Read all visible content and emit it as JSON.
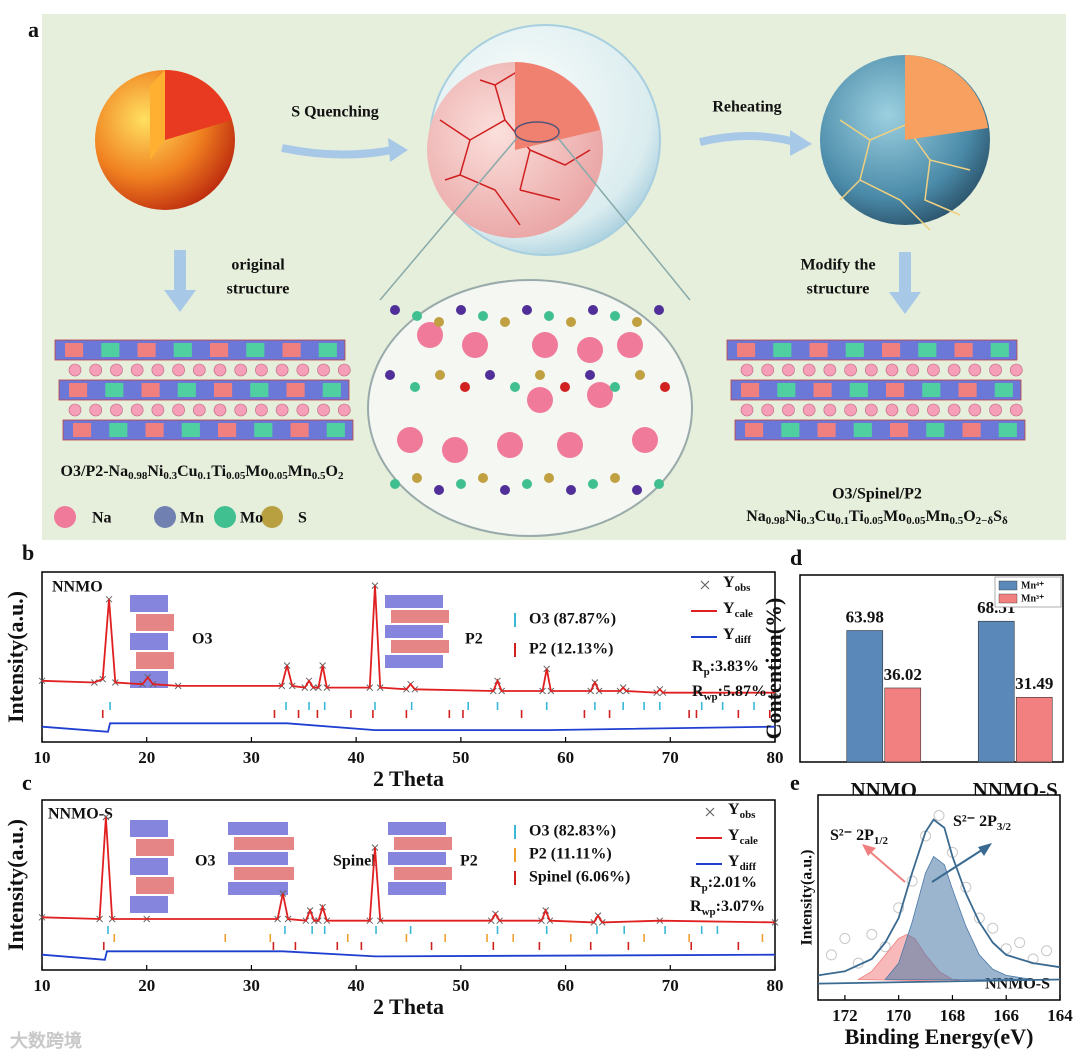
{
  "panel_a": {
    "label": "a",
    "step_1": "S Quenching",
    "step_2": "Reheating",
    "note_left": [
      "original",
      "structure"
    ],
    "note_right": [
      "Modify the",
      "structure"
    ],
    "formula_left": [
      [
        "O3/P2-Na",
        "0.98"
      ],
      [
        "Ni",
        "0.3"
      ],
      [
        "Cu",
        "0.1"
      ],
      [
        "Ti",
        "0.05"
      ],
      [
        "Mo",
        "0.05"
      ],
      [
        "Mn",
        "0.5"
      ],
      [
        "O",
        "2"
      ]
    ],
    "phase_right": "O3/Spinel/P2",
    "formula_right": [
      [
        "Na",
        "0.98"
      ],
      [
        "Ni",
        "0.3"
      ],
      [
        "Cu",
        "0.1"
      ],
      [
        "Ti",
        "0.05"
      ],
      [
        "Mo",
        "0.05"
      ],
      [
        "Mn",
        "0.5"
      ],
      [
        "O",
        "2−δ"
      ],
      [
        "S",
        "δ"
      ]
    ],
    "legend": [
      "Na",
      "Mn",
      "Mo",
      "S"
    ]
  },
  "watermark": "大数跨境",
  "chart_data": [
    {
      "type": "line",
      "panel": "b",
      "sample": "NNMO",
      "xlabel": "2 Theta",
      "ylabel": "Intensity(a.u.)",
      "xlim": [
        10,
        80
      ],
      "xticks": [
        10,
        20,
        30,
        40,
        50,
        60,
        70,
        80
      ],
      "ylim": [
        0,
        100
      ],
      "structure_labels": [
        "O3",
        "P2"
      ],
      "series": [
        {
          "name": "Y",
          "name_sub": "obs",
          "color": "#666666",
          "marker": "x",
          "x": [
            10,
            15,
            15.8,
            16.4,
            17.0,
            19.6,
            20.1,
            20.6,
            23,
            32.9,
            33.4,
            33.9,
            35.1,
            35.5,
            35.9,
            36.4,
            36.8,
            37.2,
            41.3,
            41.8,
            42.3,
            44.8,
            45.2,
            45.6,
            53.1,
            53.5,
            53.9,
            57.8,
            58.2,
            58.6,
            62.4,
            62.8,
            63.2,
            65.2,
            65.5,
            65.8,
            68.7,
            69,
            69.3,
            80
          ],
          "values": [
            36,
            35,
            37,
            84,
            35,
            34,
            38,
            34,
            33,
            33,
            45,
            33,
            32,
            36,
            32,
            32,
            45,
            32,
            32,
            92,
            32,
            31,
            34,
            31,
            30,
            36,
            30,
            30,
            43,
            30,
            30,
            35,
            30,
            30,
            32,
            30,
            29,
            31,
            29,
            29
          ]
        },
        {
          "name": "Y",
          "name_sub": "cale",
          "color": "#e02020",
          "x": [
            10,
            15,
            15.8,
            16.4,
            17.0,
            19.6,
            20.1,
            20.6,
            23,
            32.9,
            33.4,
            33.9,
            35.1,
            35.5,
            35.9,
            36.4,
            36.8,
            37.2,
            41.3,
            41.8,
            42.3,
            44.8,
            45.2,
            45.6,
            53.1,
            53.5,
            53.9,
            57.8,
            58.2,
            58.6,
            62.4,
            62.8,
            63.2,
            65.2,
            65.5,
            65.8,
            68.7,
            69,
            69.3,
            80
          ],
          "values": [
            36,
            35,
            37,
            84,
            35,
            34,
            38,
            34,
            33,
            33,
            45,
            33,
            32,
            36,
            32,
            32,
            45,
            32,
            32,
            92,
            32,
            31,
            34,
            31,
            30,
            36,
            30,
            30,
            43,
            30,
            30,
            35,
            30,
            30,
            32,
            30,
            29,
            31,
            29,
            29
          ]
        },
        {
          "name": "Y",
          "name_sub": "diff",
          "color": "#1f3fd0",
          "x": [
            10,
            16.3,
            16.5,
            20.1,
            33.4,
            41.8,
            58.2,
            80
          ],
          "values": [
            9,
            6,
            11,
            11,
            11,
            7,
            7,
            9
          ]
        }
      ],
      "phases": [
        {
          "name": "O3 (87.87%)",
          "color": "#3ab8d8",
          "positions": [
            16.5,
            33.3,
            35.5,
            37,
            41.8,
            45.3,
            50.7,
            53.5,
            58.2,
            62.8,
            65.5,
            67.5,
            69,
            73,
            75,
            78
          ]
        },
        {
          "name": "P2 (12.13%)",
          "color": "#d02020",
          "positions": [
            15.8,
            32.2,
            34.5,
            36.3,
            39.5,
            41.6,
            44.8,
            48.9,
            50.2,
            55.8,
            61.8,
            64.2,
            71.8,
            72.5,
            76.5,
            79.5
          ]
        }
      ],
      "fit": [
        {
          "main": "R",
          "sub": "p",
          "text": ":3.83%"
        },
        {
          "main": "R",
          "sub": "wp",
          "text": ":5.87%"
        }
      ]
    },
    {
      "type": "line",
      "panel": "c",
      "sample": "NNMO-S",
      "xlabel": "2 Theta",
      "ylabel": "Intensity(a.u.)",
      "xlim": [
        10,
        80
      ],
      "xticks": [
        10,
        20,
        30,
        40,
        50,
        60,
        70,
        80
      ],
      "ylim": [
        0,
        100
      ],
      "structure_labels": [
        "O3",
        "Spinel",
        "P2"
      ],
      "series": [
        {
          "name": "Y",
          "name_sub": "obs",
          "color": "#666666",
          "marker": "x",
          "x": [
            10,
            15.5,
            16.1,
            16.7,
            20,
            32.5,
            33.0,
            33.5,
            35.2,
            35.6,
            36.0,
            36.4,
            36.8,
            37.2,
            41.3,
            41.8,
            42.3,
            52.9,
            53.3,
            53.7,
            57.7,
            58.1,
            58.5,
            62.7,
            63.1,
            63.5,
            69,
            80
          ],
          "values": [
            31,
            30,
            90,
            30,
            30,
            30,
            45,
            30,
            29,
            35,
            29,
            29,
            37,
            29,
            29,
            72,
            29,
            29,
            33,
            29,
            29,
            35,
            29,
            28,
            32,
            28,
            29,
            28
          ]
        },
        {
          "name": "Y",
          "name_sub": "cale",
          "color": "#e02020",
          "x": [
            10,
            15.5,
            16.1,
            16.7,
            20,
            32.5,
            33.0,
            33.5,
            35.2,
            35.6,
            36.0,
            36.4,
            36.8,
            37.2,
            41.3,
            41.8,
            42.3,
            52.9,
            53.3,
            53.7,
            57.7,
            58.1,
            58.5,
            62.7,
            63.1,
            63.5,
            69,
            80
          ],
          "values": [
            31,
            30,
            90,
            30,
            30,
            30,
            45,
            30,
            29,
            35,
            29,
            29,
            37,
            29,
            29,
            72,
            29,
            29,
            33,
            29,
            29,
            35,
            29,
            28,
            32,
            28,
            29,
            28
          ]
        },
        {
          "name": "Y",
          "name_sub": "diff",
          "color": "#1f3fd0",
          "x": [
            10,
            16.0,
            16.2,
            33.0,
            41.8,
            80
          ],
          "values": [
            9,
            6,
            11,
            11,
            8,
            9
          ]
        }
      ],
      "phases": [
        {
          "name": "O3 (82.83%)",
          "color": "#3ab8d8",
          "positions": [
            16.3,
            33.2,
            35.8,
            37,
            41.9,
            45.2,
            53.5,
            58.2,
            63,
            65.6,
            69.5,
            73,
            74.5
          ]
        },
        {
          "name": "P2 (11.11%)",
          "color": "#f0a030",
          "positions": [
            16.9,
            27.5,
            31.8,
            39.2,
            44.8,
            48.5,
            52.5,
            55,
            60.5,
            67.5,
            71.8,
            78.8
          ]
        },
        {
          "name": "Spinel (6.06%)",
          "color": "#d02020",
          "positions": [
            15.9,
            32.1,
            34.2,
            38.2,
            40.5,
            47.2,
            53.1,
            57.5,
            62.4,
            66,
            72,
            76.5
          ]
        }
      ],
      "fit": [
        {
          "main": "R",
          "sub": "p",
          "text": ":2.01%"
        },
        {
          "main": "R",
          "sub": "wp",
          "text": ":3.07%"
        }
      ]
    },
    {
      "type": "bar",
      "panel": "d",
      "ylabel": "Contention(%)",
      "categories": [
        "NNMO",
        "NNMO-S"
      ],
      "ylim": [
        0,
        91
      ],
      "series": [
        {
          "name": "Mn⁴⁺",
          "color": "#5a88b8",
          "values": [
            63.98,
            68.51
          ]
        },
        {
          "name": "Mn³⁺",
          "color": "#f28080",
          "values": [
            36.02,
            31.49
          ]
        }
      ]
    },
    {
      "type": "line",
      "panel": "e",
      "sample": "NNMO-S",
      "xlabel": "Binding Energy(eV)",
      "ylabel": "Intensity(a.u.)",
      "xlim": [
        173,
        164
      ],
      "xticks": [
        172,
        170,
        168,
        166,
        164
      ],
      "ylim": [
        0,
        100
      ],
      "series": [
        {
          "color": "#c8c8c8",
          "marker": "circle",
          "x": [
            172.5,
            172,
            171.5,
            171,
            170.5,
            170,
            169.5,
            169,
            168.5,
            168,
            167.5,
            167,
            166.5,
            166,
            165.5,
            165,
            164.5
          ],
          "values": [
            22,
            30,
            18,
            32,
            26,
            45,
            58,
            80,
            90,
            72,
            55,
            40,
            35,
            25,
            28,
            20,
            24
          ]
        },
        {
          "name": "S²⁻ 2P",
          "name_sub": "1/2",
          "color": "#f08080",
          "fill": true,
          "x": [
            171.5,
            171,
            170.5,
            170,
            169.7,
            169.4,
            169,
            168.5,
            168,
            167.5
          ],
          "values": [
            10,
            14,
            22,
            30,
            32,
            30,
            22,
            14,
            10,
            9
          ]
        },
        {
          "name": "S²⁻ 2P",
          "name_sub": "3/2",
          "color": "#4a78a8",
          "fill": true,
          "x": [
            170.5,
            170,
            169.5,
            169,
            168.7,
            168.3,
            168,
            167.5,
            167,
            166.5,
            166,
            165
          ],
          "values": [
            10,
            18,
            38,
            62,
            70,
            66,
            54,
            36,
            22,
            15,
            12,
            10
          ]
        },
        {
          "color": "#3a6a90",
          "x": [
            173,
            172,
            171,
            170.5,
            170,
            169.5,
            169,
            168.7,
            168.3,
            168,
            167.5,
            167,
            166.5,
            166,
            165,
            164
          ],
          "values": [
            12,
            14,
            20,
            28,
            40,
            62,
            82,
            88,
            84,
            70,
            52,
            38,
            28,
            22,
            18,
            16
          ]
        },
        {
          "color": "#3a6a90",
          "x": [
            173,
            164
          ],
          "values": [
            8,
            10
          ]
        }
      ]
    }
  ]
}
